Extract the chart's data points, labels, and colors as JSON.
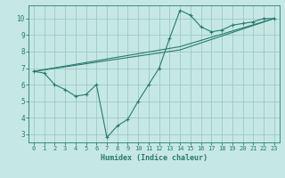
{
  "line1_x": [
    0,
    1,
    2,
    3,
    4,
    5,
    6,
    7,
    8,
    9,
    10,
    11,
    12,
    13,
    14,
    15,
    16,
    17,
    18,
    19,
    20,
    21,
    22,
    23
  ],
  "line1_y": [
    6.8,
    6.7,
    6.0,
    5.7,
    5.3,
    5.4,
    6.0,
    2.8,
    3.5,
    3.9,
    5.0,
    6.0,
    7.0,
    8.8,
    10.5,
    10.2,
    9.5,
    9.2,
    9.3,
    9.6,
    9.7,
    9.8,
    10.0,
    10.0
  ],
  "line2_x": [
    0,
    14,
    23
  ],
  "line2_y": [
    6.8,
    8.1,
    10.0
  ],
  "line3_x": [
    0,
    14,
    23
  ],
  "line3_y": [
    6.8,
    8.3,
    10.0
  ],
  "line_color": "#2a7a6e",
  "bg_color": "#c5e8e5",
  "grid_color": "#9ec8c4",
  "xlabel": "Humidex (Indice chaleur)",
  "xlim": [
    -0.5,
    23.5
  ],
  "ylim": [
    2.5,
    10.8
  ],
  "yticks": [
    3,
    4,
    5,
    6,
    7,
    8,
    9,
    10
  ],
  "xticks": [
    0,
    1,
    2,
    3,
    4,
    5,
    6,
    7,
    8,
    9,
    10,
    11,
    12,
    13,
    14,
    15,
    16,
    17,
    18,
    19,
    20,
    21,
    22,
    23
  ]
}
